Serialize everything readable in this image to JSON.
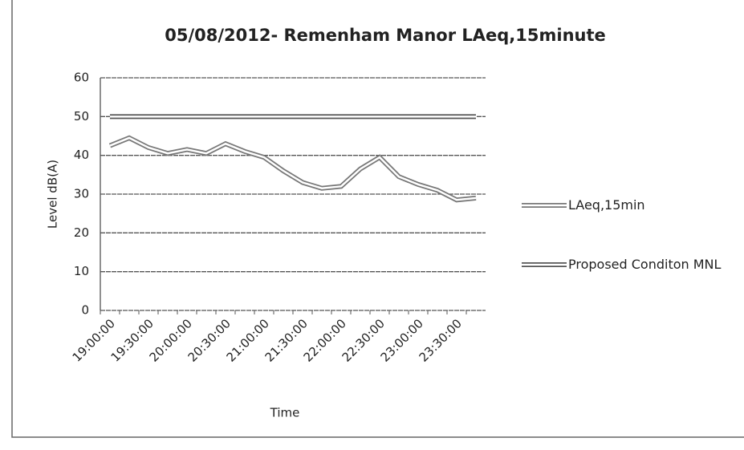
{
  "chart_data": {
    "type": "line",
    "title": "05/08/2012- Remenham Manor LAeq,15minute",
    "x_label": "Time",
    "y_label": "Level dB(A)",
    "categories": [
      "19:00:00",
      null,
      "19:30:00",
      null,
      "20:00:00",
      null,
      "20:30:00",
      null,
      "21:00:00",
      null,
      "21:30:00",
      null,
      "22:00:00",
      null,
      "22:30:00",
      null,
      "23:00:00",
      null,
      "23:30:00",
      null
    ],
    "series": [
      {
        "name": "LAeq,15min",
        "color": "#777777",
        "values": [
          42.5,
          44.5,
          42,
          40.5,
          41.5,
          40.5,
          43,
          41,
          39.5,
          36,
          33,
          31.5,
          32,
          36.5,
          39.5,
          34.5,
          32.5,
          31,
          28.5,
          29
        ]
      },
      {
        "name": "Proposed Conditon MNL",
        "color": "#555555",
        "values": [
          50,
          50,
          50,
          50,
          50,
          50,
          50,
          50,
          50,
          50,
          50,
          50,
          50,
          50,
          50,
          50,
          50,
          50,
          50,
          50
        ]
      }
    ],
    "ylim": [
      0,
      60
    ],
    "yticks": [
      0,
      10,
      20,
      30,
      40,
      50,
      60
    ],
    "grid": true,
    "legend": "right"
  }
}
